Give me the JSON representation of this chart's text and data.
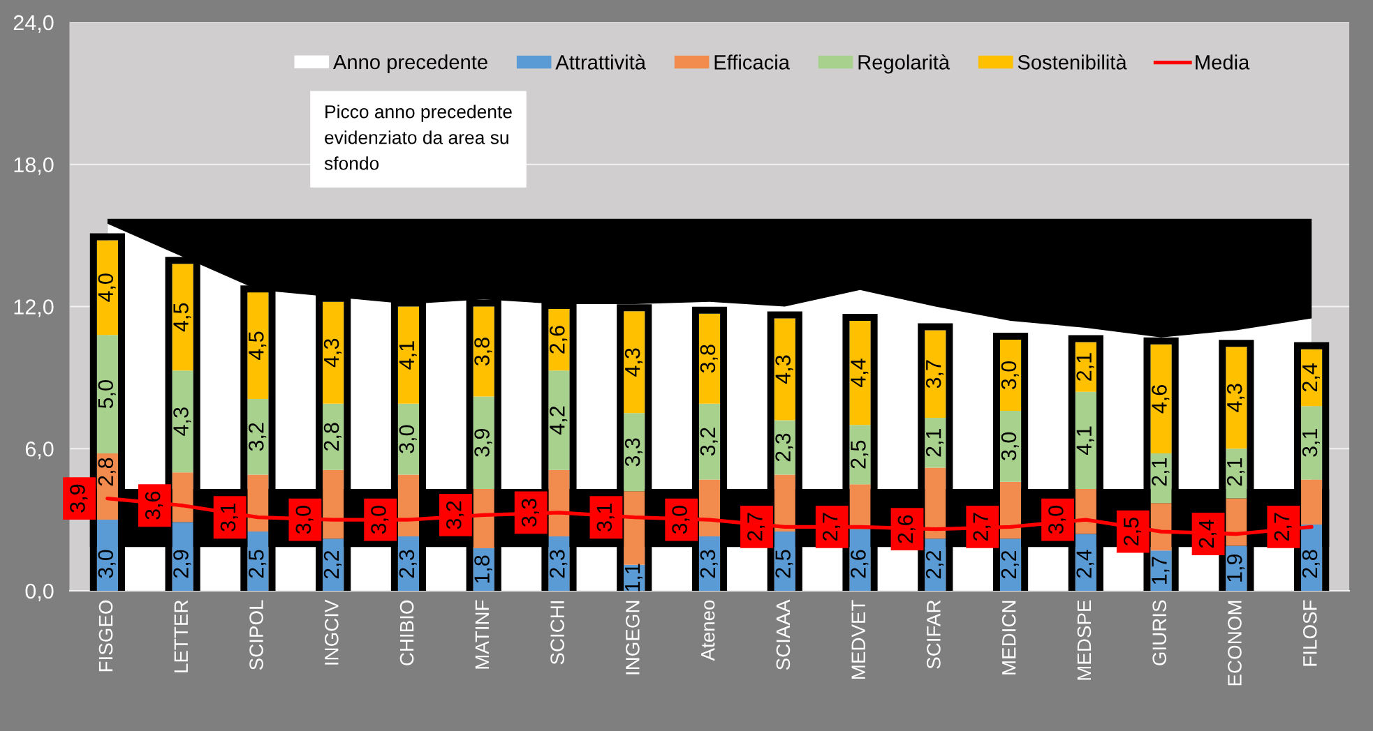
{
  "chart_data": [
    {
      "type": "area",
      "categories": [
        "FISGEO",
        "LETTER",
        "SCIPOL",
        "INGCIV",
        "CHIBIO",
        "MATINF",
        "SCICHI",
        "INGEGN",
        "Ateneo",
        "SCIAAA",
        "MEDVET",
        "SCIFAR",
        "MEDICN",
        "MEDSPE",
        "GIURIS",
        "ECONOM",
        "FILOSF"
      ],
      "series": [
        {
          "color": "#000000",
          "values": [
            15.7,
            15.7,
            15.7,
            15.7,
            15.7,
            15.7,
            15.7,
            15.7,
            15.7,
            15.7,
            15.7,
            15.7,
            15.7,
            15.7,
            15.7,
            15.7,
            15.7
          ]
        },
        {
          "name": "Anno precedente",
          "color": "#ffffff",
          "values": [
            15.5,
            14.1,
            12.7,
            null,
            12.1,
            12.3,
            12.1,
            12.1,
            12.2,
            12.0,
            12.7,
            12.0,
            11.4,
            11.1,
            10.7,
            11.0,
            11.5
          ]
        }
      ],
      "ylim": [
        0,
        24
      ],
      "yticks": [
        {
          "value": 0,
          "label": null
        },
        {
          "value": 6,
          "label": null
        },
        {
          "value": 12,
          "label": null
        },
        {
          "value": 18,
          "label": null
        },
        {
          "value": 24,
          "label": null
        }
      ],
      "tick_labels": "x",
      "grid": "y",
      "legend": "top",
      "annotations": [
        "Picco anno precedente\nevidenziato da area su\nsfondo"
      ]
    },
    {
      "type": "bar",
      "stacked": true,
      "categories": [
        null,
        null,
        null,
        null,
        null,
        null,
        null,
        null,
        null,
        null,
        null,
        null,
        null,
        null,
        null,
        null,
        null
      ],
      "series": [
        {
          "name": "Attrattività",
          "color": "#5b9bd5",
          "values": [
            3.0,
            2.9,
            2.5,
            2.2,
            2.3,
            1.8,
            2.3,
            1.1,
            2.3,
            2.5,
            2.6,
            2.2,
            2.2,
            2.4,
            1.7,
            1.9,
            2.8
          ],
          "value_labels": [
            "3,0",
            "2,9",
            "2,5",
            "2,2",
            "2,3",
            "1,8",
            "2,3",
            "1,1",
            "2,3",
            "2,5",
            "2,6",
            "2,2",
            "2,2",
            "2,4",
            "1,7",
            "1,9",
            "2,8"
          ]
        },
        {
          "name": "Efficacia",
          "color": "#f28c4e",
          "values": [
            2.8,
            2.1,
            2.4,
            2.9,
            2.6,
            2.5,
            2.8,
            3.1,
            2.4,
            2.4,
            1.9,
            3.0,
            2.4,
            1.9,
            2.0,
            2.0,
            1.9
          ],
          "value_labels": [
            "2,8",
            null,
            null,
            null,
            null,
            null,
            null,
            null,
            null,
            null,
            null,
            null,
            null,
            null,
            null,
            null,
            null
          ]
        },
        {
          "name": "Regolarità",
          "color": "#a9d18e",
          "values": [
            5.0,
            4.3,
            3.2,
            2.8,
            3.0,
            3.9,
            4.2,
            3.3,
            3.2,
            2.3,
            2.5,
            2.1,
            3.0,
            4.1,
            2.1,
            2.1,
            3.1
          ],
          "value_labels": [
            "5,0",
            "4,3",
            "3,2",
            "2,8",
            "3,0",
            "3,9",
            "4,2",
            "3,3",
            "3,2",
            "2,3",
            "2,5",
            "2,1",
            "3,0",
            "4,1",
            "2,1",
            "2,1",
            "3,1"
          ]
        },
        {
          "name": "Sostenibilità",
          "color": "#ffc000",
          "values": [
            4.0,
            4.5,
            4.5,
            4.3,
            4.1,
            3.8,
            2.6,
            4.3,
            3.8,
            4.3,
            4.4,
            3.7,
            3.0,
            2.1,
            4.6,
            4.3,
            2.4
          ],
          "value_labels": [
            "4,0",
            "4,5",
            "4,5",
            "4,3",
            "4,1",
            "3,8",
            "2,6",
            "4,3",
            "3,8",
            "4,3",
            "4,4",
            "3,7",
            "3,0",
            "2,1",
            "4,6",
            "4,3",
            "2,4"
          ]
        },
        {
          "type": "line",
          "name": "Media",
          "color": "#ff0000",
          "values": [
            3.9,
            3.6,
            3.1,
            3.0,
            3.0,
            3.2,
            3.3,
            3.1,
            3.0,
            2.7,
            2.7,
            2.6,
            2.7,
            3.0,
            2.5,
            2.4,
            2.7
          ],
          "value_labels": [
            "3,9",
            "3,6",
            "3,1",
            "3,0",
            "3,0",
            "3,2",
            "3,3",
            "3,1",
            "3,0",
            "2,7",
            "2,7",
            "2,6",
            "2,7",
            "3,0",
            "2,5",
            "2,4",
            "2,7"
          ]
        }
      ],
      "ylim": [
        0,
        24
      ],
      "yticks": [
        {
          "value": 0,
          "label": "0,0"
        },
        {
          "value": 6,
          "label": "6,0"
        },
        {
          "value": 12,
          "label": "12,0"
        },
        {
          "value": 18,
          "label": "18,0"
        },
        {
          "value": 24,
          "label": "24,0"
        }
      ],
      "tick_labels": "y",
      "legend": "top",
      "bands": [
        {
          "axis": "y",
          "from": 1.85,
          "to": 4.3,
          "color": "#000000"
        }
      ]
    }
  ]
}
